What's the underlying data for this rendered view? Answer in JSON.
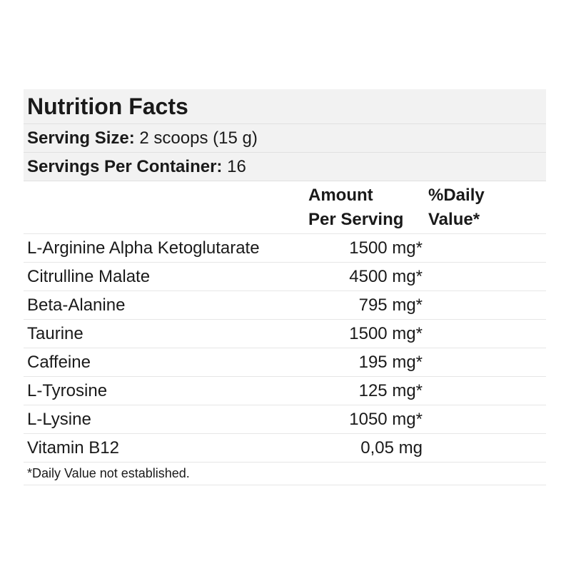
{
  "title": "Nutrition Facts",
  "serving_size": {
    "label": "Serving Size:",
    "value": "2 scoops (15 g)"
  },
  "servings_per_container": {
    "label": "Servings Per Container:",
    "value": "16"
  },
  "columns": {
    "amount_line1": "Amount",
    "amount_line2": "Per Serving",
    "dv_line1": "%Daily",
    "dv_line2": "Value*"
  },
  "rows": [
    {
      "name": "L-Arginine Alpha Ketoglutarate",
      "amount": "1500 mg*"
    },
    {
      "name": "Citrulline Malate",
      "amount": "4500 mg*"
    },
    {
      "name": "Beta-Alanine",
      "amount": "795 mg*"
    },
    {
      "name": "Taurine",
      "amount": "1500 mg*"
    },
    {
      "name": "Caffeine",
      "amount": "195 mg*"
    },
    {
      "name": "L-Tyrosine",
      "amount": "125 mg*"
    },
    {
      "name": "L-Lysine",
      "amount": "1050 mg*"
    },
    {
      "name": "Vitamin B12",
      "amount": "0,05 mg"
    }
  ],
  "footnote": "*Daily Value not established."
}
